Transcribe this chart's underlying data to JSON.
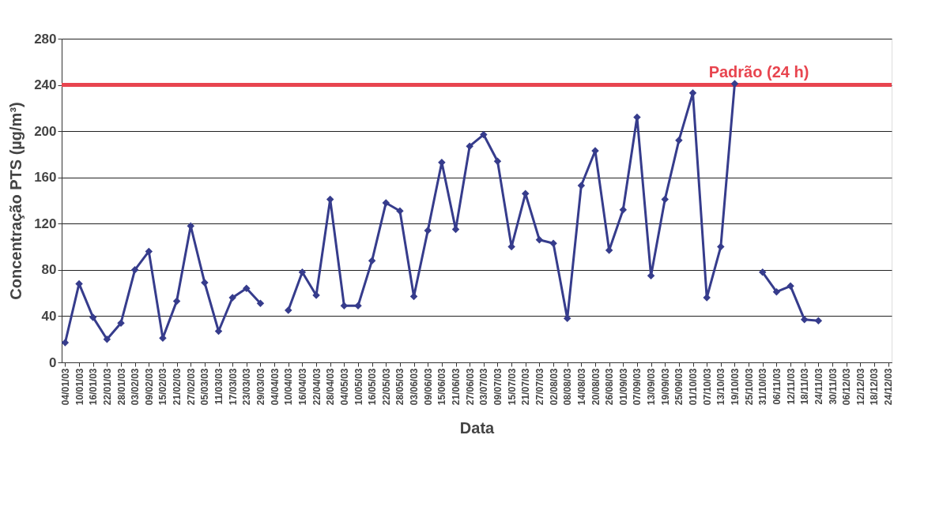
{
  "chart_data": {
    "type": "line",
    "xlabel": "Data",
    "ylabel": "Concentração PTS (µg/m³)",
    "categories": [
      "04/01/03",
      "10/01/03",
      "16/01/03",
      "22/01/03",
      "28/01/03",
      "03/02/03",
      "09/02/03",
      "15/02/03",
      "21/02/03",
      "27/02/03",
      "05/03/03",
      "11/03/03",
      "17/03/03",
      "23/03/03",
      "29/03/03",
      "04/04/03",
      "10/04/03",
      "16/04/03",
      "22/04/03",
      "28/04/03",
      "04/05/03",
      "10/05/03",
      "16/05/03",
      "22/05/03",
      "28/05/03",
      "03/06/03",
      "09/06/03",
      "15/06/03",
      "21/06/03",
      "27/06/03",
      "03/07/03",
      "09/07/03",
      "15/07/03",
      "21/07/03",
      "27/07/03",
      "02/08/03",
      "08/08/03",
      "14/08/03",
      "20/08/03",
      "26/08/03",
      "01/09/03",
      "07/09/03",
      "13/09/03",
      "19/09/03",
      "25/09/03",
      "01/10/03",
      "07/10/03",
      "13/10/03",
      "19/10/03",
      "25/10/03",
      "31/10/03",
      "06/11/03",
      "12/11/03",
      "18/11/03",
      "24/11/03",
      "30/11/03",
      "06/12/03",
      "12/12/03",
      "18/12/03",
      "24/12/03"
    ],
    "series": [
      {
        "color": "#363c8c",
        "values": [
          17,
          68,
          39,
          20,
          34,
          80,
          96,
          21,
          53,
          118,
          69,
          27,
          56,
          64,
          51,
          null,
          45,
          78,
          58,
          141,
          49,
          49,
          88,
          138,
          131,
          57,
          114,
          173,
          115,
          187,
          197,
          174,
          100,
          146,
          106,
          103,
          38,
          153,
          183,
          97,
          132,
          212,
          75,
          141,
          192,
          233,
          56,
          100,
          241,
          null,
          78,
          61,
          66,
          37,
          36,
          null,
          null,
          null,
          null,
          null
        ]
      }
    ],
    "ylim": [
      0,
      280
    ],
    "yticks": [
      0,
      40,
      80,
      120,
      160,
      200,
      240,
      280
    ],
    "ref_lines": [
      {
        "axis": "y",
        "value": 240,
        "label": "Padrão (24 h)",
        "color": "#e8454f"
      }
    ],
    "grid": "y",
    "marker": "diamond"
  }
}
